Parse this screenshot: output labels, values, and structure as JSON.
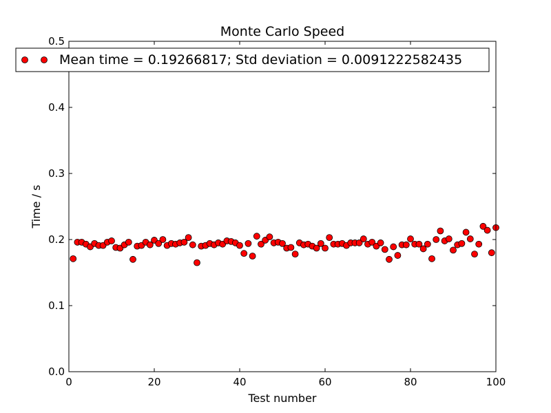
{
  "chart_data": {
    "type": "scatter",
    "title": "Monte Carlo Speed",
    "xlabel": "Test number",
    "ylabel": "Time / s",
    "xlim": [
      0,
      100
    ],
    "ylim": [
      0.0,
      0.5
    ],
    "xticks": [
      "0",
      "20",
      "40",
      "60",
      "80",
      "100"
    ],
    "yticks": [
      "0.0",
      "0.1",
      "0.2",
      "0.3",
      "0.4",
      "0.5"
    ],
    "grid": false,
    "legend": {
      "placement": "top",
      "entries": [
        "Mean time = 0.19266817; Std deviation = 0.0091222582435"
      ]
    },
    "marker_color": "#ff0000",
    "series": [
      {
        "name": "Mean time = 0.19266817; Std deviation = 0.0091222582435",
        "x": [
          1,
          2,
          3,
          4,
          5,
          6,
          7,
          8,
          9,
          10,
          11,
          12,
          13,
          14,
          15,
          16,
          17,
          18,
          19,
          20,
          21,
          22,
          23,
          24,
          25,
          26,
          27,
          28,
          29,
          30,
          31,
          32,
          33,
          34,
          35,
          36,
          37,
          38,
          39,
          40,
          41,
          42,
          43,
          44,
          45,
          46,
          47,
          48,
          49,
          50,
          51,
          52,
          53,
          54,
          55,
          56,
          57,
          58,
          59,
          60,
          61,
          62,
          63,
          64,
          65,
          66,
          67,
          68,
          69,
          70,
          71,
          72,
          73,
          74,
          75,
          76,
          77,
          78,
          79,
          80,
          81,
          82,
          83,
          84,
          85,
          86,
          87,
          88,
          89,
          90,
          91,
          92,
          93,
          94,
          95,
          96,
          97,
          98,
          99,
          100
        ],
        "y": [
          0.171,
          0.196,
          0.196,
          0.193,
          0.189,
          0.194,
          0.191,
          0.191,
          0.196,
          0.198,
          0.188,
          0.187,
          0.192,
          0.196,
          0.17,
          0.19,
          0.191,
          0.196,
          0.192,
          0.199,
          0.194,
          0.2,
          0.191,
          0.194,
          0.193,
          0.195,
          0.196,
          0.203,
          0.192,
          0.165,
          0.19,
          0.191,
          0.194,
          0.192,
          0.195,
          0.193,
          0.198,
          0.197,
          0.195,
          0.191,
          0.179,
          0.194,
          0.175,
          0.205,
          0.193,
          0.199,
          0.204,
          0.195,
          0.196,
          0.194,
          0.187,
          0.188,
          0.178,
          0.195,
          0.192,
          0.193,
          0.19,
          0.187,
          0.194,
          0.187,
          0.203,
          0.193,
          0.193,
          0.194,
          0.191,
          0.195,
          0.195,
          0.195,
          0.201,
          0.193,
          0.196,
          0.19,
          0.195,
          0.185,
          0.17,
          0.189,
          0.176,
          0.192,
          0.192,
          0.201,
          0.193,
          0.193,
          0.186,
          0.193,
          0.171,
          0.2,
          0.213,
          0.198,
          0.201,
          0.184,
          0.192,
          0.194,
          0.211,
          0.201,
          0.178,
          0.193,
          0.22,
          0.214,
          0.18,
          0.218
        ]
      }
    ]
  }
}
